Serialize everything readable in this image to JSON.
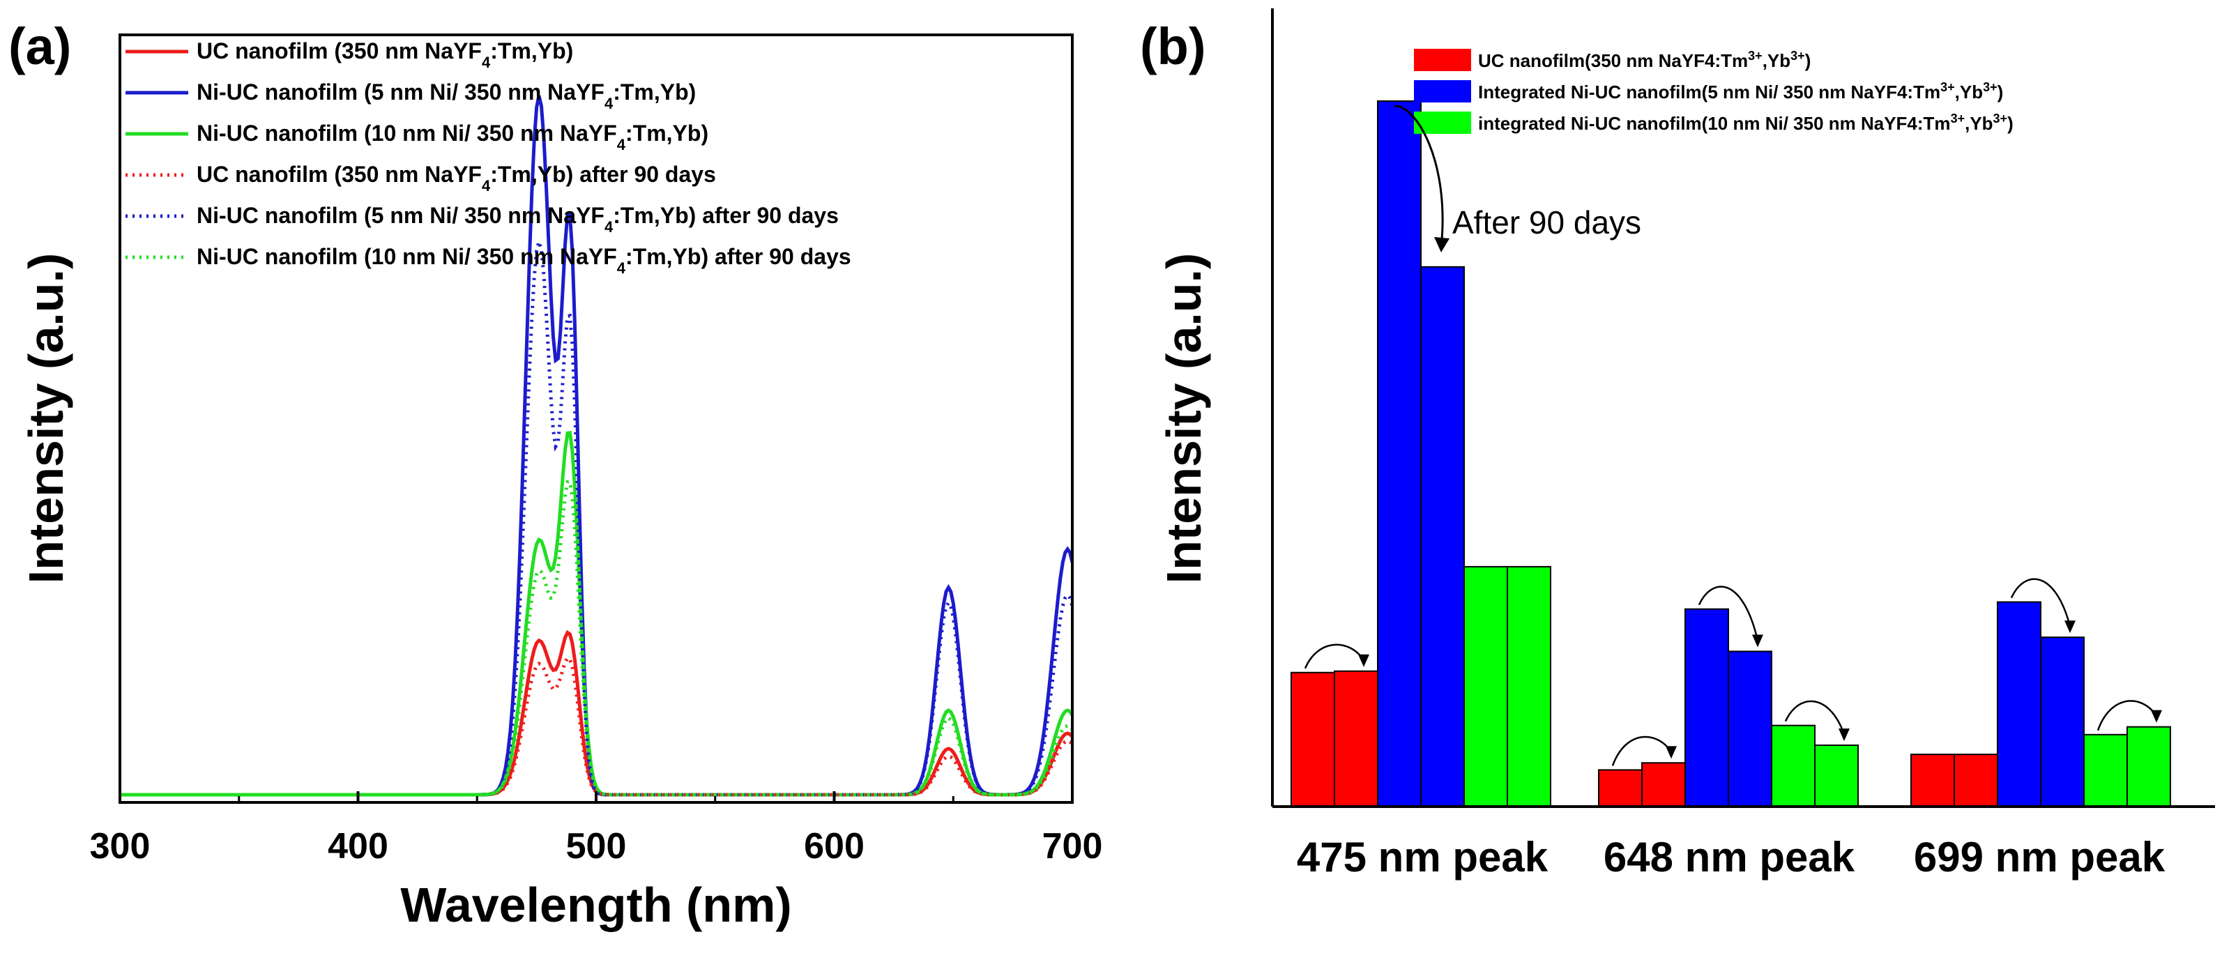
{
  "chart_data": [
    {
      "panel": "(a)",
      "type": "line",
      "xlabel": "Wavelength (nm)",
      "ylabel": "Intensity (a.u.)",
      "xlim": [
        300,
        700
      ],
      "ylim": [
        0,
        100
      ],
      "xticks": [
        300,
        400,
        500,
        600,
        700
      ],
      "colors": {
        "red": "#ee1c1c",
        "blue": "#1c1ccc",
        "green": "#22dd22"
      },
      "legend": [
        {
          "pre": "UC nanofilm (350 nm NaYF",
          "sub": "4",
          "post": ":Tm,Yb)",
          "color": "#ee1c1c",
          "style": "solid"
        },
        {
          "pre": "Ni-UC nanofilm (5 nm Ni/ 350 nm NaYF",
          "sub": "4",
          "post": ":Tm,Yb)",
          "color": "#1c1ccc",
          "style": "solid"
        },
        {
          "pre": "Ni-UC nanofilm (10 nm Ni/ 350 nm NaYF",
          "sub": "4",
          "post": ":Tm,Yb)",
          "color": "#22dd22",
          "style": "solid"
        },
        {
          "pre": "UC nanofilm (350 nm NaYF",
          "sub": "4",
          "post": ":Tm,Yb) after 90 days",
          "color": "#ee1c1c",
          "style": "dotted"
        },
        {
          "pre": "Ni-UC nanofilm (5 nm Ni/ 350 nm NaYF",
          "sub": "4",
          "post": ":Tm,Yb) after 90 days",
          "color": "#1c1ccc",
          "style": "dotted"
        },
        {
          "pre": "Ni-UC nanofilm (10 nm Ni/ 350 nm NaYF",
          "sub": "4",
          "post": ":Tm,Yb) after 90 days",
          "color": "#22dd22",
          "style": "dotted"
        }
      ],
      "series": [
        {
          "name": "UC nanofilm",
          "style": "solid",
          "color": "#ee1c1c",
          "baseline": 1,
          "peaks": [
            {
              "x": 476,
              "h": 20,
              "w": 6
            },
            {
              "x": 489,
              "h": 19,
              "w": 4
            },
            {
              "x": 648,
              "h": 6,
              "w": 5
            },
            {
              "x": 698,
              "h": 8,
              "w": 6
            }
          ]
        },
        {
          "name": "Ni-UC nanofilm (5 nm Ni)",
          "style": "solid",
          "color": "#1c1ccc",
          "baseline": 1,
          "peaks": [
            {
              "x": 476,
              "h": 91,
              "w": 5.5
            },
            {
              "x": 489,
              "h": 70,
              "w": 3.5
            },
            {
              "x": 648,
              "h": 27,
              "w": 5
            },
            {
              "x": 698,
              "h": 32,
              "w": 6
            }
          ]
        },
        {
          "name": "Ni-UC nanofilm (10 nm Ni)",
          "style": "solid",
          "color": "#22dd22",
          "baseline": 1,
          "peaks": [
            {
              "x": 476,
              "h": 33,
              "w": 6
            },
            {
              "x": 489,
              "h": 44,
              "w": 4
            },
            {
              "x": 648,
              "h": 11,
              "w": 5
            },
            {
              "x": 698,
              "h": 11,
              "w": 6
            }
          ]
        },
        {
          "name": "UC nanofilm after 90 days",
          "style": "dotted",
          "color": "#ee1c1c",
          "baseline": 1,
          "peaks": [
            {
              "x": 476,
              "h": 17,
              "w": 6
            },
            {
              "x": 489,
              "h": 16,
              "w": 4
            },
            {
              "x": 648,
              "h": 5,
              "w": 5
            },
            {
              "x": 698,
              "h": 7,
              "w": 6
            }
          ]
        },
        {
          "name": "Ni-UC nanofilm (5 nm Ni) after 90 days",
          "style": "dotted",
          "color": "#1c1ccc",
          "baseline": 1,
          "peaks": [
            {
              "x": 476,
              "h": 72,
              "w": 5.5
            },
            {
              "x": 489,
              "h": 58,
              "w": 3.5
            },
            {
              "x": 648,
              "h": 25,
              "w": 5
            },
            {
              "x": 698,
              "h": 26,
              "w": 6
            }
          ]
        },
        {
          "name": "Ni-UC nanofilm (10 nm Ni) after 90 days",
          "style": "dotted",
          "color": "#22dd22",
          "baseline": 1,
          "peaks": [
            {
              "x": 476,
              "h": 29,
              "w": 6
            },
            {
              "x": 489,
              "h": 38,
              "w": 4
            },
            {
              "x": 648,
              "h": 10,
              "w": 5
            },
            {
              "x": 698,
              "h": 9,
              "w": 6
            }
          ]
        }
      ]
    },
    {
      "panel": "(b)",
      "type": "bar",
      "ylabel": "Intensity (a.u.)",
      "ylim": [
        0,
        100
      ],
      "categories": [
        "475 nm peak",
        "648 nm peak",
        "699 nm peak"
      ],
      "groups": [
        {
          "name": "UC nanofilm",
          "color": "#ff0000",
          "values": [
            19,
            5.2,
            7.4
          ],
          "after": [
            19.2,
            6.2,
            7.4
          ]
        },
        {
          "name": "Integrated Ni-UC nanofilm (5 nm Ni)",
          "color": "#0000ff",
          "values": [
            100,
            28,
            29
          ],
          "after": [
            76.5,
            22,
            24
          ]
        },
        {
          "name": "integrated Ni-UC nanofilm (10 nm Ni)",
          "color": "#00ff00",
          "values": [
            34,
            11.5,
            10.2
          ],
          "after": [
            34,
            8.7,
            11.3
          ]
        }
      ],
      "arrows": [
        [
          true,
          true,
          false
        ],
        [
          true,
          true,
          true
        ],
        [
          false,
          true,
          true
        ]
      ],
      "legend": [
        {
          "text": "UC nanofilm(350 nm NaYF4:Tm",
          "sup1": "3+",
          "mid": ",Yb",
          "sup2": "3+",
          "end": ")",
          "color": "#ff0000"
        },
        {
          "text": "Integrated Ni-UC nanofilm(5 nm Ni/ 350 nm NaYF4:Tm",
          "sup1": "3+",
          "mid": ",Yb",
          "sup2": "3+",
          "end": ")",
          "color": "#0000ff"
        },
        {
          "text": "integrated Ni-UC nanofilm(10 nm Ni/ 350 nm NaYF4:Tm",
          "sup1": "3+",
          "mid": ",Yb",
          "sup2": "3+",
          "end": ")",
          "color": "#00ff00"
        }
      ],
      "annotation": "After 90 days"
    }
  ]
}
